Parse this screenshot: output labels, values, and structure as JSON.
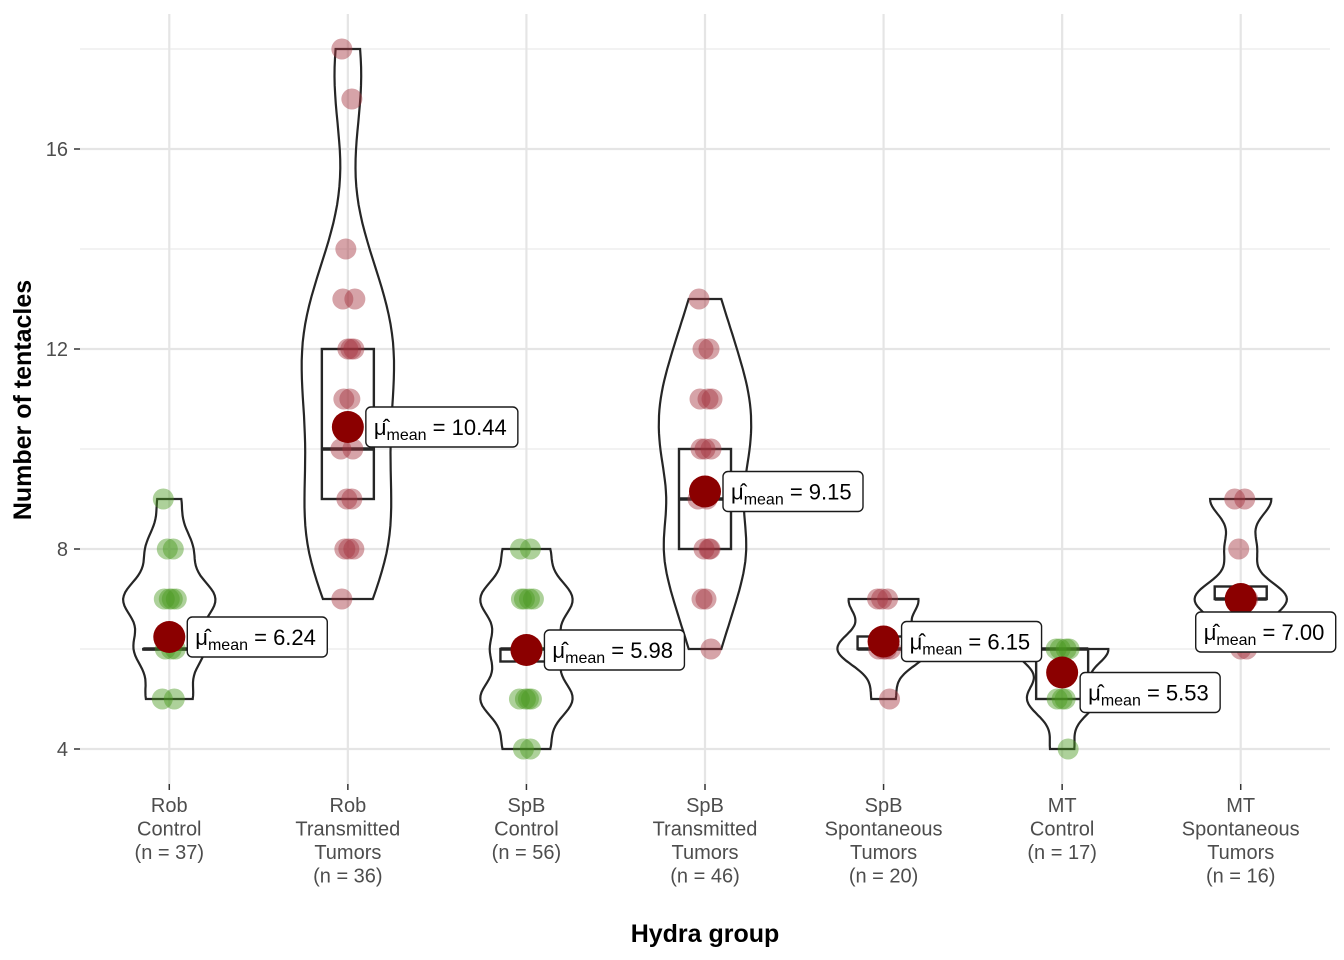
{
  "chart_data": {
    "type": "violin-box-scatter",
    "title": "",
    "xlabel": "Hydra group",
    "ylabel": "Number of tentacles",
    "ylim": [
      3.3,
      18.7
    ],
    "yticks": [
      4,
      8,
      12,
      16
    ],
    "ytick_labels": [
      "4",
      "8",
      "12",
      "16"
    ],
    "grid": true,
    "colors": {
      "control_points": "#4a9a1f",
      "tumor_points": "#a3333f",
      "mean_point": "#8b0000",
      "box_outline": "#262626",
      "grid": "#ebebeb"
    },
    "mean_label_template": {
      "symbol": "μ̂",
      "subscript": "mean",
      "separator": " = "
    },
    "groups": [
      {
        "label_lines": [
          "Rob",
          "Control",
          "(n = 37)"
        ],
        "n": 37,
        "kind": "control",
        "values": [
          9,
          8,
          8,
          7,
          7,
          7,
          7,
          6,
          6,
          6,
          5,
          5
        ],
        "box": {
          "q1": 6,
          "median": 6,
          "q3": 6
        },
        "range": [
          5,
          9
        ],
        "mean": 6.24,
        "mean_label": "6.24"
      },
      {
        "label_lines": [
          "Rob",
          "Transmitted",
          "Tumors",
          "(n = 36)"
        ],
        "n": 36,
        "kind": "tumor",
        "values": [
          18,
          17,
          14,
          13,
          13,
          12,
          12,
          12,
          11,
          11,
          10,
          10,
          9,
          9,
          8,
          8,
          8,
          7
        ],
        "box": {
          "q1": 9,
          "median": 10,
          "q3": 12
        },
        "range": [
          7,
          18
        ],
        "mean": 10.44,
        "mean_label": "10.44"
      },
      {
        "label_lines": [
          "SpB",
          "Control",
          "(n = 56)"
        ],
        "n": 56,
        "kind": "control",
        "values": [
          8,
          8,
          7,
          7,
          7,
          7,
          6,
          6,
          6,
          5,
          5,
          5,
          5,
          4,
          4
        ],
        "box": {
          "q1": 5.75,
          "median": 6,
          "q3": 6
        },
        "range": [
          4,
          8
        ],
        "mean": 5.98,
        "mean_label": "5.98"
      },
      {
        "label_lines": [
          "SpB",
          "Transmitted",
          "Tumors",
          "(n = 46)"
        ],
        "n": 46,
        "kind": "tumor",
        "values": [
          13,
          12,
          12,
          11,
          11,
          11,
          10,
          10,
          10,
          9,
          9,
          8,
          8,
          8,
          7,
          7,
          6
        ],
        "box": {
          "q1": 8,
          "median": 9,
          "q3": 10
        },
        "range": [
          6,
          13
        ],
        "mean": 9.15,
        "mean_label": "9.15"
      },
      {
        "label_lines": [
          "SpB",
          "Spontaneous",
          "Tumors",
          "(n = 20)"
        ],
        "n": 20,
        "kind": "tumor",
        "values": [
          7,
          7,
          7,
          6,
          6,
          6,
          6,
          5
        ],
        "box": {
          "q1": 6,
          "median": 6,
          "q3": 6.25
        },
        "range": [
          5,
          7
        ],
        "mean": 6.15,
        "mean_label": "6.15"
      },
      {
        "label_lines": [
          "MT",
          "Control",
          "(n = 17)"
        ],
        "n": 17,
        "kind": "control",
        "values": [
          6,
          6,
          6,
          6,
          5,
          5,
          5,
          4
        ],
        "box": {
          "q1": 5,
          "median": 6,
          "q3": 6
        },
        "range": [
          4,
          6
        ],
        "mean": 5.53,
        "mean_label": "5.53"
      },
      {
        "label_lines": [
          "MT",
          "Spontaneous",
          "Tumors",
          "(n = 16)"
        ],
        "n": 16,
        "kind": "tumor",
        "values": [
          9,
          9,
          8,
          7,
          7,
          7,
          6,
          6
        ],
        "box": {
          "q1": 7,
          "median": 7,
          "q3": 7.25
        },
        "range": [
          6,
          9
        ],
        "mean": 7.0,
        "mean_label": "7.00"
      }
    ]
  }
}
